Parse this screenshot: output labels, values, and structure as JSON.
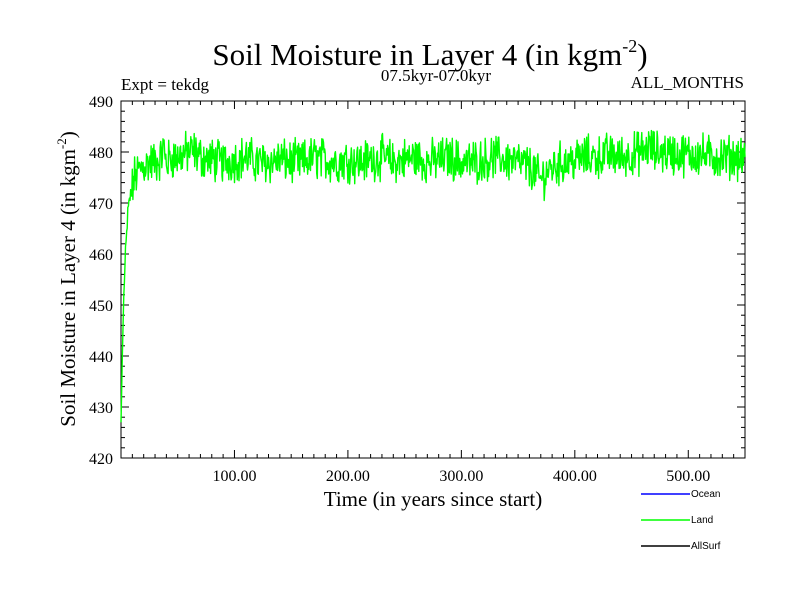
{
  "chart_data": {
    "type": "line",
    "title_main": "Soil Moisture in Layer 4 (in kgm",
    "title_sup": "-2",
    "title_close": ")",
    "subtitle_left": "Expt = tekdg",
    "subtitle_center": "07.5kyr-07.0kyr",
    "subtitle_right": "ALL_MONTHS",
    "xlabel": "Time (in years since start)",
    "ylabel_main": "Soil Moisture in Layer 4 (in kgm",
    "ylabel_sup": "-2",
    "ylabel_close": ")",
    "xlim": [
      0,
      550
    ],
    "ylim": [
      420,
      490
    ],
    "x_ticks": [
      100,
      200,
      300,
      400,
      500
    ],
    "x_tick_labels": [
      "100.00",
      "200.00",
      "300.00",
      "400.00",
      "500.00"
    ],
    "y_ticks": [
      420,
      430,
      440,
      450,
      460,
      470,
      480,
      490
    ],
    "y_tick_labels": [
      "420",
      "430",
      "440",
      "450",
      "460",
      "470",
      "480",
      "490"
    ],
    "legend_position": "bottom-right, outside plot",
    "series": [
      {
        "name": "Ocean",
        "color": "#0000ff",
        "x": [],
        "y": []
      },
      {
        "name": "Land",
        "color": "#00ff00",
        "x": [
          0,
          1,
          2,
          3,
          4,
          5,
          6,
          8,
          10,
          12,
          15,
          18,
          22,
          26,
          30,
          35,
          37,
          40,
          45,
          50,
          55,
          60,
          65,
          70,
          80,
          90,
          100,
          110,
          120,
          130,
          140,
          150,
          160,
          170,
          180,
          190,
          200,
          210,
          220,
          230,
          240,
          250,
          260,
          270,
          280,
          290,
          300,
          310,
          320,
          330,
          340,
          350,
          360,
          365,
          370,
          375,
          380,
          390,
          400,
          410,
          420,
          430,
          440,
          450,
          460,
          465,
          470,
          480,
          490,
          500,
          510,
          520,
          530,
          540,
          550
        ],
        "y": [
          427,
          438,
          448,
          455,
          460,
          464,
          468,
          471,
          473,
          475,
          476,
          477,
          477.5,
          478,
          478,
          478.5,
          481,
          478,
          479,
          479,
          479.5,
          480,
          480,
          479,
          478.5,
          478,
          478.5,
          479,
          478,
          478,
          478.5,
          478,
          478,
          479,
          478.5,
          478,
          478.5,
          478,
          478.5,
          479,
          478,
          478.5,
          479,
          478,
          478.5,
          479,
          478,
          478,
          478.5,
          479,
          478.5,
          478,
          477,
          476,
          474.5,
          476,
          477,
          478,
          478.5,
          479,
          479,
          479.5,
          479,
          479.5,
          480,
          481,
          480,
          480,
          479.5,
          479.5,
          479.5,
          479,
          479,
          479,
          479
        ]
      },
      {
        "name": "AllSurf",
        "color": "#000000",
        "x": [],
        "y": []
      }
    ]
  }
}
